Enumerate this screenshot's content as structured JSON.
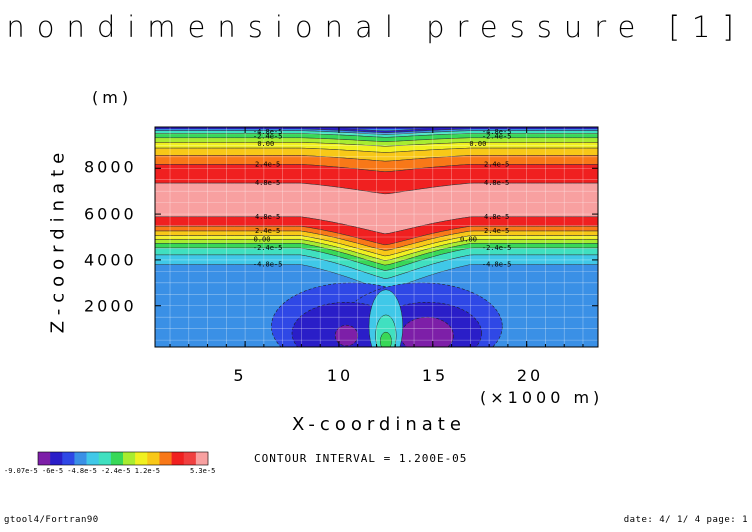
{
  "chart_data": {
    "type": "heatmap",
    "title": "nondimensional pressure [1]",
    "xlabel": "X-coordinate",
    "x_unit": "(×1000 m)",
    "ylabel": "Z-coordinate",
    "y_unit": "(m)",
    "xlim": [
      0.2,
      23.8
    ],
    "ylim": [
      200,
      9800
    ],
    "x_ticks": [
      5,
      10,
      15,
      20
    ],
    "y_ticks": [
      2000,
      4000,
      6000,
      8000
    ],
    "grid": true,
    "contour_interval_text": "CONTOUR INTERVAL = 1.200E-05",
    "colorbar": {
      "min_label": "-9.07e-5",
      "mid_labels_text": "-6e-5 -4.8e-5 -2.4e-5 1.2e-5",
      "max_label": "5.3e-5",
      "colors": [
        "#7d1fa8",
        "#2a1ec8",
        "#2f48e6",
        "#3a90e6",
        "#40c8e8",
        "#40e0c0",
        "#38d858",
        "#a8ec30",
        "#f0f020",
        "#f8c818",
        "#f87818",
        "#f02020",
        "#f04040",
        "#f8a0a0"
      ]
    },
    "bands_z": [
      {
        "z": 9800,
        "color": "#2a1ec8"
      },
      {
        "z": 9720,
        "color": "#3a90e6"
      },
      {
        "z": 9640,
        "color": "#40e0c0"
      },
      {
        "z": 9520,
        "color": "#38d858"
      },
      {
        "z": 9330,
        "color": "#a8ec30"
      },
      {
        "z": 9130,
        "color": "#f0f020"
      },
      {
        "z": 8880,
        "color": "#f8c818"
      },
      {
        "z": 8560,
        "color": "#f87818"
      },
      {
        "z": 8170,
        "color": "#f02020"
      },
      {
        "z": 7350,
        "color": "#f8a0a0"
      },
      {
        "z": 5880,
        "color": "#f02020"
      },
      {
        "z": 5470,
        "color": "#f87818"
      },
      {
        "z": 5260,
        "color": "#f8c818"
      },
      {
        "z": 5060,
        "color": "#f0f020"
      },
      {
        "z": 4890,
        "color": "#a8ec30"
      },
      {
        "z": 4720,
        "color": "#38d858"
      },
      {
        "z": 4520,
        "color": "#40e0c0"
      },
      {
        "z": 4220,
        "color": "#40c8e8"
      },
      {
        "z": 3800,
        "color": "#3a90e6"
      }
    ],
    "contour_labels": [
      {
        "x": 6.2,
        "z": 9590,
        "text": "-4.8e-5"
      },
      {
        "x": 6.2,
        "z": 9380,
        "text": "-2.4e-5"
      },
      {
        "x": 6.1,
        "z": 9060,
        "text": "0.00"
      },
      {
        "x": 6.2,
        "z": 8170,
        "text": "2.4e-5"
      },
      {
        "x": 6.2,
        "z": 7350,
        "text": "4.8e-5"
      },
      {
        "x": 6.2,
        "z": 5880,
        "text": "4.8e-5"
      },
      {
        "x": 6.2,
        "z": 5260,
        "text": "2.4e-5"
      },
      {
        "x": 5.9,
        "z": 4890,
        "text": "0.00"
      },
      {
        "x": 6.2,
        "z": 4520,
        "text": "-2.4e-5"
      },
      {
        "x": 6.2,
        "z": 3800,
        "text": "-4.8e-5"
      },
      {
        "x": 18.4,
        "z": 9590,
        "text": "-4.8e-5"
      },
      {
        "x": 18.4,
        "z": 9380,
        "text": "-2.4e-5"
      },
      {
        "x": 17.4,
        "z": 9060,
        "text": "0.00"
      },
      {
        "x": 18.4,
        "z": 8170,
        "text": "2.4e-5"
      },
      {
        "x": 18.4,
        "z": 7350,
        "text": "4.8e-5"
      },
      {
        "x": 18.4,
        "z": 5880,
        "text": "4.8e-5"
      },
      {
        "x": 18.4,
        "z": 5260,
        "text": "2.4e-5"
      },
      {
        "x": 16.9,
        "z": 4890,
        "text": "0.00"
      },
      {
        "x": 18.4,
        "z": 4520,
        "text": "-2.4e-5"
      },
      {
        "x": 18.4,
        "z": 3800,
        "text": "-4.8e-5"
      }
    ],
    "lower_field": {
      "background_color": "#3a90e6",
      "lobes": [
        {
          "cx": 10.7,
          "cz": 1100,
          "rx": 4.3,
          "rz": 1900,
          "color": "#2f48e6"
        },
        {
          "cx": 14.4,
          "cz": 1100,
          "rx": 4.3,
          "rz": 1900,
          "color": "#2f48e6"
        },
        {
          "cx": 10.4,
          "cz": 800,
          "rx": 2.9,
          "rz": 1350,
          "color": "#2a1ec8"
        },
        {
          "cx": 14.7,
          "cz": 800,
          "rx": 2.9,
          "rz": 1350,
          "color": "#2a1ec8"
        },
        {
          "cx": 10.4,
          "cz": 700,
          "rx": 0.6,
          "rz": 450,
          "color": "#7d1fa8"
        },
        {
          "cx": 14.7,
          "cz": 700,
          "rx": 1.4,
          "rz": 800,
          "color": "#7d1fa8"
        }
      ],
      "jet": [
        {
          "cx": 12.5,
          "cz": 1100,
          "rx": 0.9,
          "rz": 1600,
          "color": "#40c8e8"
        },
        {
          "cx": 12.5,
          "cz": 700,
          "rx": 0.55,
          "rz": 900,
          "color": "#40e0c0"
        },
        {
          "cx": 12.5,
          "cz": 450,
          "rx": 0.3,
          "rz": 400,
          "color": "#38d858"
        }
      ]
    }
  },
  "footer": {
    "program": "gtool4/Fortran90",
    "date": "date: 4/ 1/ 4 page: 1"
  }
}
